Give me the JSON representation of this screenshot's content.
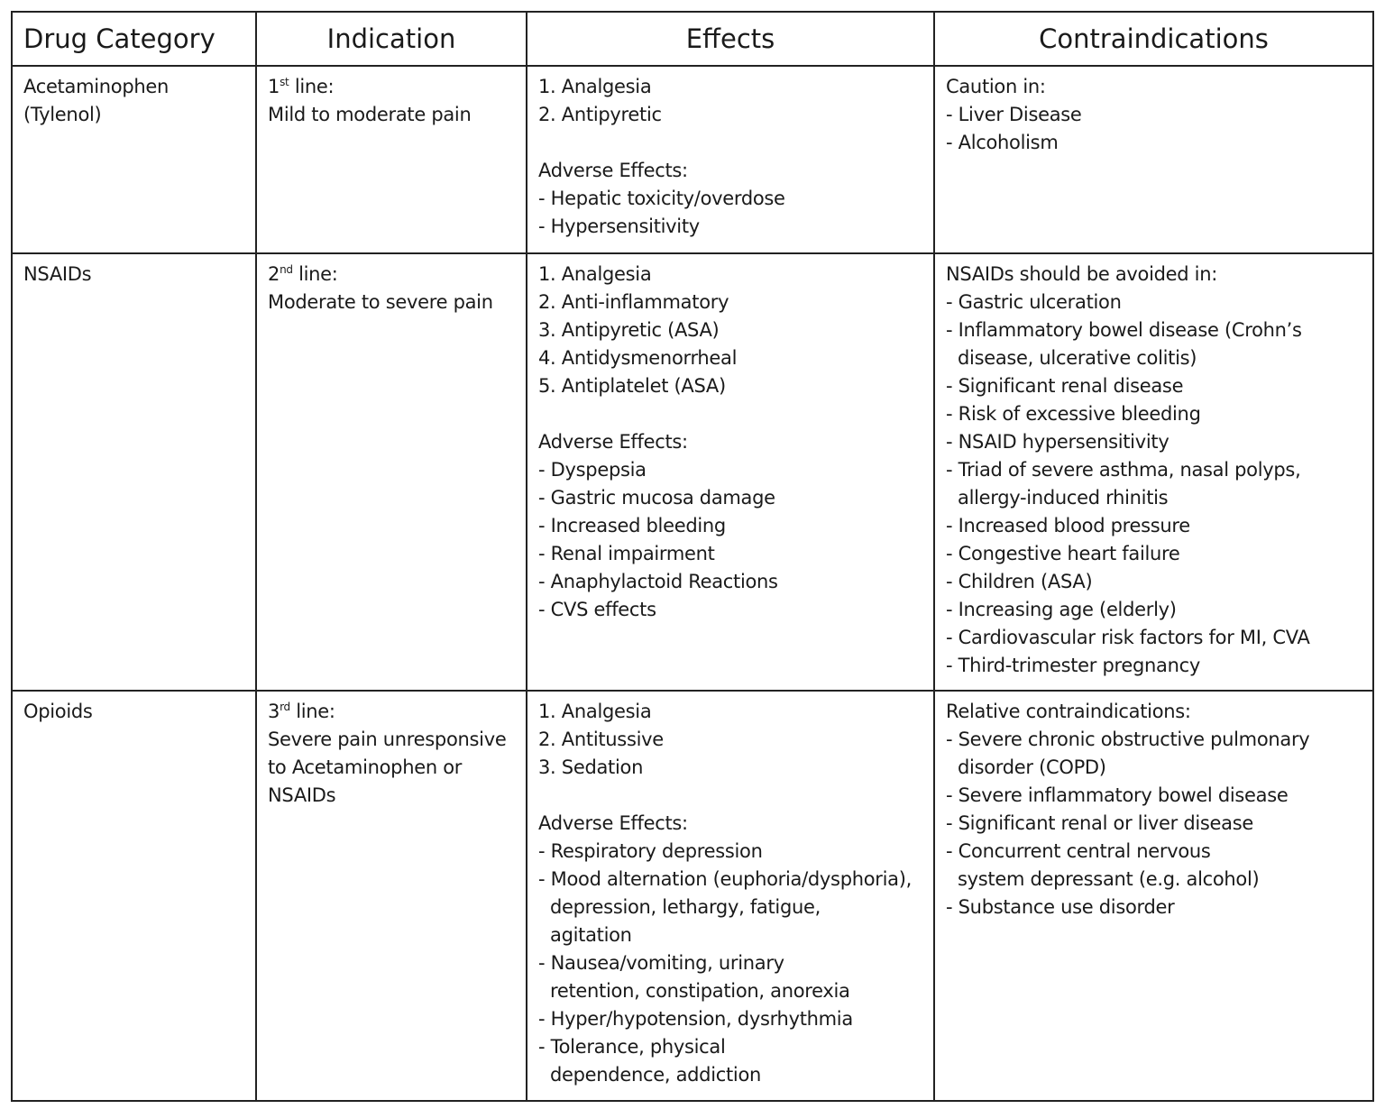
{
  "table": {
    "header": [
      "Drug Category",
      "Indication",
      "Effects",
      "Contraindications"
    ],
    "rows": [
      {
        "drug_category": [
          "Acetaminophen",
          "(Tylenol)"
        ],
        "indication": {
          "ordinal": "1",
          "ordinal_suffix": "st",
          "label": "line:",
          "lines": [
            "Mild to moderate pain"
          ]
        },
        "effects": {
          "items": [
            "1. Analgesia",
            "2. Antipyretic"
          ],
          "adverse_heading": "Adverse Effects:",
          "adverse": [
            [
              "- Hepatic toxicity/overdose"
            ],
            [
              "- Hypersensitivity"
            ]
          ]
        },
        "contraindications": {
          "heading": "Caution in:",
          "items": [
            [
              "- Liver Disease"
            ],
            [
              "- Alcoholism"
            ]
          ]
        }
      },
      {
        "drug_category": [
          "NSAIDs"
        ],
        "indication": {
          "ordinal": "2",
          "ordinal_suffix": "nd",
          "label": "line:",
          "lines": [
            "Moderate to severe pain"
          ]
        },
        "effects": {
          "items": [
            "1. Analgesia",
            "2. Anti-inflammatory",
            "3. Antipyretic (ASA)",
            "4. Antidysmenorrheal",
            "5. Antiplatelet (ASA)"
          ],
          "adverse_heading": "Adverse Effects:",
          "adverse": [
            [
              "- Dyspepsia"
            ],
            [
              "- Gastric mucosa damage"
            ],
            [
              "- Increased bleeding"
            ],
            [
              "- Renal impairment"
            ],
            [
              "- Anaphylactoid Reactions"
            ],
            [
              "- CVS effects"
            ]
          ]
        },
        "contraindications": {
          "heading": "NSAIDs should be avoided in:",
          "items": [
            [
              "- Gastric ulceration"
            ],
            [
              "- Inflammatory bowel disease (Crohn’s",
              "disease, ulcerative colitis)"
            ],
            [
              "- Significant renal disease"
            ],
            [
              "- Risk of excessive bleeding"
            ],
            [
              "- NSAID hypersensitivity"
            ],
            [
              "- Triad of severe asthma, nasal polyps,",
              "allergy-induced rhinitis"
            ],
            [
              "- Increased blood pressure"
            ],
            [
              "- Congestive heart failure"
            ],
            [
              "- Children (ASA)"
            ],
            [
              "- Increasing age (elderly)"
            ],
            [
              "- Cardiovascular risk factors for MI, CVA"
            ],
            [
              "- Third-trimester pregnancy"
            ]
          ]
        }
      },
      {
        "drug_category": [
          "Opioids"
        ],
        "indication": {
          "ordinal": "3",
          "ordinal_suffix": "rd",
          "label": "line:",
          "lines": [
            "Severe pain unresponsive",
            "to Acetaminophen or",
            "NSAIDs"
          ]
        },
        "effects": {
          "items": [
            "1. Analgesia",
            "2. Antitussive",
            "3. Sedation"
          ],
          "adverse_heading": "Adverse Effects:",
          "adverse": [
            [
              "- Respiratory depression"
            ],
            [
              "- Mood alternation (euphoria/dysphoria),",
              "depression, lethargy, fatigue,",
              "agitation"
            ],
            [
              "- Nausea/vomiting, urinary",
              "retention, constipation, anorexia"
            ],
            [
              "- Hyper/hypotension, dysrhythmia"
            ],
            [
              "- Tolerance, physical",
              "dependence, addiction"
            ]
          ]
        },
        "contraindications": {
          "heading": "Relative contraindications:",
          "items": [
            [
              "- Severe chronic obstructive pulmonary",
              "disorder (COPD)"
            ],
            [
              "- Severe inflammatory bowel disease"
            ],
            [
              "- Significant renal or liver disease"
            ],
            [
              "- Concurrent central nervous",
              "system depressant (e.g. alcohol)"
            ],
            [
              "- Substance use disorder"
            ]
          ]
        }
      }
    ]
  }
}
